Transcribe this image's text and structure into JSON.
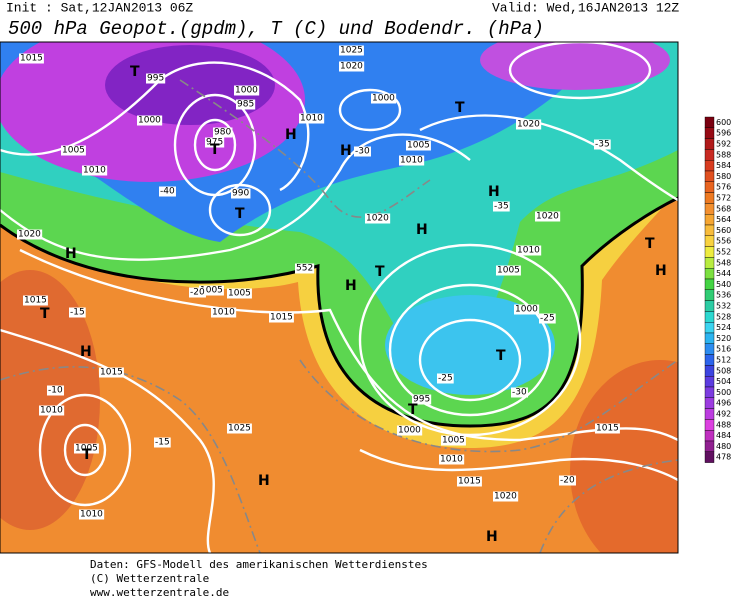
{
  "header": {
    "init": "Init : Sat,12JAN2013 06Z",
    "valid": "Valid: Wed,16JAN2013 12Z",
    "title": "500 hPa Geopot.(gpdm), T (C) und Bodendr. (hPa)"
  },
  "colorbar": {
    "labels": [
      "600",
      "596",
      "592",
      "588",
      "584",
      "580",
      "576",
      "572",
      "568",
      "564",
      "560",
      "556",
      "552",
      "548",
      "544",
      "540",
      "536",
      "532",
      "528",
      "524",
      "520",
      "516",
      "512",
      "508",
      "504",
      "500",
      "496",
      "492",
      "488",
      "484",
      "480",
      "478"
    ],
    "colors": [
      "#7a0010",
      "#960a14",
      "#b01a1a",
      "#c82a22",
      "#d83c20",
      "#e05020",
      "#e86420",
      "#ee7a22",
      "#f39030",
      "#f6a632",
      "#f8bc3c",
      "#f9d240",
      "#eeec40",
      "#b8ec40",
      "#7ce040",
      "#44d444",
      "#30cc74",
      "#2ccca4",
      "#2cd8d0",
      "#3cd4f0",
      "#2cb4f0",
      "#2c8cf0",
      "#2c64ec",
      "#3c44e0",
      "#5c3ce0",
      "#7c3ce0",
      "#9c3ce0",
      "#bc3ce0",
      "#dc40e0",
      "#c030c0",
      "#902090",
      "#601060"
    ]
  },
  "map": {
    "labels": [
      "1015",
      "995",
      "1000",
      "1005",
      "1010",
      "980",
      "985",
      "975",
      "990",
      "1000",
      "1025",
      "1020",
      "1010",
      "1000",
      "1010",
      "1005",
      "1020",
      "1020",
      "1010",
      "1005",
      "1000",
      "1020",
      "1015",
      "1010",
      "1010",
      "1005",
      "1025",
      "1015",
      "1005",
      "995",
      "1000",
      "1005",
      "1010",
      "1015",
      "1020",
      "1015",
      "1015",
      "1010",
      "1020",
      "1005",
      "-40",
      "-35",
      "-30",
      "-25",
      "-20",
      "-15",
      "-10",
      "-35",
      "-30",
      "-25",
      "-15",
      "-20",
      "552"
    ],
    "centers": [
      "T",
      "T",
      "H",
      "H",
      "T",
      "H",
      "H",
      "T",
      "H",
      "T",
      "T",
      "T",
      "H",
      "T",
      "H",
      "H",
      "T",
      "T",
      "H",
      "H"
    ]
  },
  "footer": {
    "source": "Daten: GFS-Modell des amerikanischen Wetterdienstes",
    "copyright": "(C) Wetterzentrale",
    "url": "www.wetterzentrale.de"
  }
}
